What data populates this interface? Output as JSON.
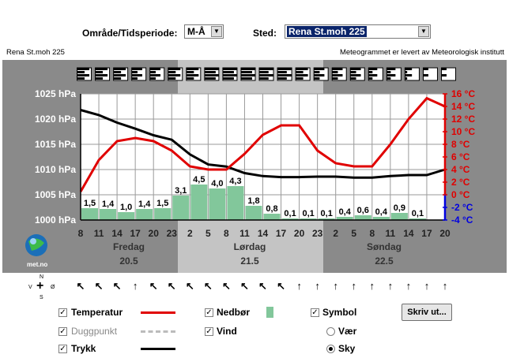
{
  "header": {
    "area_label": "Område/Tidsperiode:",
    "area_value": "M-Å",
    "place_label": "Sted:",
    "place_value": "Rena St.moh 225"
  },
  "station_name": "Rena St.moh 225",
  "credit": "Meteogrammet er levert av Meteorologisk institutt",
  "logo_text": "met.no",
  "chart_data": {
    "type": "line",
    "x_ticks": [
      "8",
      "11",
      "14",
      "17",
      "20",
      "23",
      "2",
      "5",
      "8",
      "11",
      "14",
      "17",
      "20",
      "23",
      "2",
      "5",
      "8",
      "11",
      "14",
      "17",
      "20"
    ],
    "y_left_ticks": [
      "1025 hPa",
      "1020 hPa",
      "1015 hPa",
      "1010 hPa",
      "1005 hPa",
      "1000 hPa"
    ],
    "y_left_range": [
      1000,
      1025
    ],
    "y_right_ticks": [
      "16 °C",
      "14 °C",
      "12 °C",
      "10 °C",
      "8 °C",
      "6 °C",
      "4 °C",
      "2 °C",
      "0 °C",
      "-2 °C",
      "-4 °C"
    ],
    "y_right_range": [
      -4,
      16
    ],
    "days": [
      {
        "name": "Fredag",
        "date": "20.5"
      },
      {
        "name": "Lørdag",
        "date": "21.5"
      },
      {
        "name": "Søndag",
        "date": "22.5"
      }
    ],
    "series": [
      {
        "name": "Temperatur",
        "color": "#e00000",
        "values": [
          0.5,
          5.5,
          8.5,
          9.0,
          8.5,
          7.0,
          4.5,
          4.0,
          4.0,
          6.5,
          9.5,
          11.0,
          11.0,
          7.0,
          5.0,
          4.5,
          4.5,
          8.0,
          12.0,
          15.3,
          14.0
        ]
      },
      {
        "name": "Trykk",
        "color": "#000000",
        "values": [
          1021.8,
          1020.8,
          1019.3,
          1018.1,
          1016.8,
          1015.9,
          1013.0,
          1011.0,
          1010.6,
          1009.3,
          1008.7,
          1008.5,
          1008.5,
          1008.6,
          1008.6,
          1008.4,
          1008.4,
          1008.7,
          1008.9,
          1008.9,
          1010.0
        ]
      }
    ],
    "precipitation": {
      "name": "Nedbør",
      "color": "#82c79b",
      "labels": [
        "1,5",
        "1,4",
        "1,0",
        "1,4",
        "1,5",
        "3,1",
        "4,5",
        "4,0",
        "4,3",
        "1,8",
        "0,8",
        "0,1",
        "0,1",
        "0,1",
        "0,4",
        "0,6",
        "0,4",
        "0,9",
        "0,1"
      ],
      "values": [
        1.5,
        1.4,
        1.0,
        1.4,
        1.5,
        3.1,
        4.5,
        4.0,
        4.3,
        1.8,
        0.8,
        0.1,
        0.1,
        0.1,
        0.4,
        0.6,
        0.4,
        0.9,
        0.1
      ]
    },
    "cloud_cover_eighths": [
      6,
      6,
      6,
      5,
      5,
      6,
      6,
      8,
      8,
      8,
      7,
      7,
      6,
      5,
      5,
      5,
      4,
      4,
      3,
      2,
      2
    ]
  },
  "wind": {
    "compass": {
      "n": "N",
      "s": "S",
      "v": "V",
      "o": "Ø"
    },
    "arrows": [
      "↖",
      "↖",
      "↖",
      "↑",
      "↖",
      "↖",
      "↖",
      "↖",
      "↖",
      "↖",
      "↖",
      "↖",
      "↑",
      "↑",
      "↑",
      "↑",
      "↑",
      "↑",
      "↑",
      "↑",
      "↑"
    ]
  },
  "legend": {
    "temperature": "Temperatur",
    "dewpoint": "Duggpunkt",
    "pressure": "Trykk",
    "precip": "Nedbør",
    "wind": "Vind",
    "symbol": "Symbol",
    "weather": "Vær",
    "sky": "Sky",
    "print": "Skriv ut..."
  }
}
